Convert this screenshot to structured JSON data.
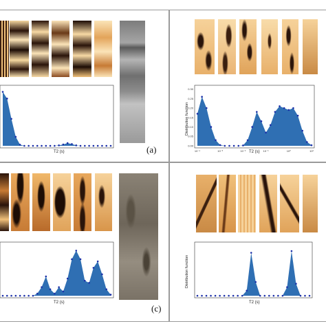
{
  "panels": {
    "a": {
      "label": "(a)"
    },
    "c": {
      "label": "(c)"
    }
  },
  "colors": {
    "bar_fill": "#2f6fb3",
    "point": "#1b2fa8",
    "border": "#9a9a9a",
    "core_image_light": "#f5d7a0",
    "core_image_dark": "#3b1f0f"
  },
  "chart_data": [
    {
      "panel": "top-left",
      "type": "area",
      "xlabel": "T2 (s)",
      "ylabel": "",
      "xscale": "log",
      "x_log10": [
        -4.0,
        -3.8,
        -3.6,
        -3.4,
        -3.2,
        -3.0,
        -2.8,
        -2.6,
        -2.4,
        -2.2,
        -2.0,
        -1.8,
        -1.6,
        -1.4,
        -1.2,
        -1.0,
        -0.8,
        -0.6,
        -0.4,
        -0.2,
        0.0,
        0.2,
        0.4,
        0.6,
        0.8,
        1.0
      ],
      "values": [
        0.24,
        0.21,
        0.12,
        0.04,
        0.005,
        0.0,
        0.0,
        0.0,
        0.0,
        0.0,
        0.0,
        0.0,
        0.0,
        0.002,
        0.006,
        0.012,
        0.008,
        0.002,
        0.0,
        0.0,
        0.0,
        0.0,
        0.0,
        0.0,
        0.0,
        0.0
      ],
      "ylim": [
        0,
        0.26
      ]
    },
    {
      "panel": "top-right",
      "type": "area",
      "xlabel": "T2 (s)",
      "ylabel": "Distribution function",
      "xscale": "log",
      "x_tick_labels": [
        "10⁻⁴",
        "10⁻³",
        "10⁻²",
        "10⁻¹",
        "10⁰",
        "10¹"
      ],
      "y_tick_labels": [
        "0.00",
        "0.05",
        "0.10",
        "0.15",
        "0.20",
        "0.25",
        "0.30"
      ],
      "x_log10": [
        -4.0,
        -3.8,
        -3.6,
        -3.4,
        -3.2,
        -3.0,
        -2.8,
        -2.6,
        -2.4,
        -2.2,
        -2.0,
        -1.8,
        -1.6,
        -1.4,
        -1.2,
        -1.0,
        -0.8,
        -0.6,
        -0.4,
        -0.2,
        0.0,
        0.2,
        0.4,
        0.6,
        0.8,
        1.0
      ],
      "values": [
        0.17,
        0.26,
        0.2,
        0.1,
        0.03,
        0.004,
        0.0,
        0.0,
        0.0,
        0.0,
        0.002,
        0.03,
        0.1,
        0.18,
        0.13,
        0.07,
        0.11,
        0.18,
        0.21,
        0.2,
        0.19,
        0.2,
        0.16,
        0.08,
        0.02,
        0.003
      ],
      "ylim": [
        0,
        0.31
      ]
    },
    {
      "panel": "bottom-left",
      "type": "area",
      "xlabel": "T2 (s)",
      "ylabel": "",
      "xscale": "log",
      "x_log10": [
        -4.0,
        -3.8,
        -3.6,
        -3.4,
        -3.2,
        -3.0,
        -2.8,
        -2.6,
        -2.4,
        -2.2,
        -2.0,
        -1.8,
        -1.6,
        -1.4,
        -1.2,
        -1.0,
        -0.8,
        -0.6,
        -0.4,
        -0.2,
        0.0,
        0.2,
        0.4,
        0.6,
        0.8,
        1.0
      ],
      "values": [
        0.0,
        0.0,
        0.0,
        0.0,
        0.0,
        0.0,
        0.0,
        0.0,
        0.01,
        0.04,
        0.09,
        0.03,
        0.01,
        0.04,
        0.02,
        0.08,
        0.17,
        0.21,
        0.17,
        0.07,
        0.06,
        0.13,
        0.16,
        0.1,
        0.03,
        0.005
      ],
      "ylim": [
        0,
        0.24
      ]
    },
    {
      "panel": "bottom-right",
      "type": "area",
      "xlabel": "T2 (s)",
      "ylabel": "Distribution function",
      "xscale": "log",
      "x_log10": [
        -4.0,
        -3.8,
        -3.6,
        -3.4,
        -3.2,
        -3.0,
        -2.8,
        -2.6,
        -2.4,
        -2.2,
        -2.0,
        -1.8,
        -1.6,
        -1.4,
        -1.2,
        -1.0,
        -0.8,
        -0.6,
        -0.4,
        -0.2,
        0.0,
        0.2,
        0.4,
        0.6,
        0.8,
        1.0
      ],
      "values": [
        0.0,
        0.0,
        0.0,
        0.0,
        0.0,
        0.0,
        0.0,
        0.0,
        0.0,
        0.0,
        0.0,
        0.03,
        0.25,
        0.08,
        0.0,
        0.0,
        0.0,
        0.0,
        0.0,
        0.0,
        0.05,
        0.26,
        0.07,
        0.0,
        0.0,
        0.0
      ],
      "ylim": [
        0,
        0.3
      ]
    }
  ]
}
